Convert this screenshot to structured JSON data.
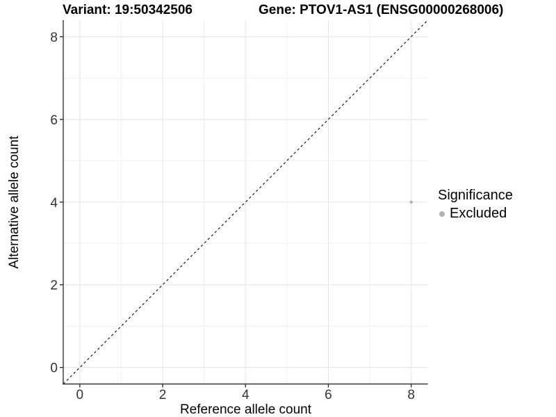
{
  "header": {
    "variant_title": "Variant: 19:50342506",
    "gene_title": "Gene: PTOV1-AS1 (ENSG00000268006)"
  },
  "chart_data": {
    "type": "scatter",
    "title": "Variant: 19:50342506   Gene: PTOV1-AS1 (ENSG00000268006)",
    "xlabel": "Reference allele count",
    "ylabel": "Alternative allele count",
    "xlim": [
      -0.4,
      8.4
    ],
    "ylim": [
      -0.4,
      8.4
    ],
    "x_ticks": [
      0,
      2,
      4,
      6,
      8
    ],
    "y_ticks": [
      0,
      2,
      4,
      6,
      8
    ],
    "x_minor_ticks": [
      1,
      3,
      5,
      7
    ],
    "y_minor_ticks": [
      1,
      3,
      5,
      7
    ],
    "grid": "major and minor, on",
    "reference_line": {
      "type": "identity y=x",
      "style": "dashed",
      "color": "#1a1a1a"
    },
    "series": [
      {
        "name": "Excluded",
        "color": "#b3b3b3",
        "points": [
          {
            "x": 8,
            "y": 4
          }
        ]
      }
    ],
    "legend": {
      "title": "Significance",
      "position": "right-middle",
      "items": [
        {
          "label": "Excluded",
          "color": "#b3b3b3"
        }
      ]
    },
    "colors": {
      "axis": "#333333",
      "tick_label": "#333333",
      "grid_major": "#e5e5e5",
      "grid_minor": "#f0f0f0",
      "point": "#b3b3b3"
    }
  }
}
